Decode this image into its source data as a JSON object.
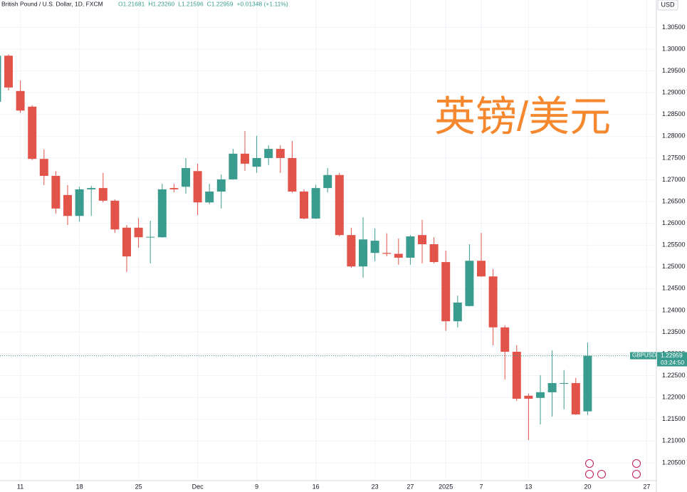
{
  "chart_data": {
    "type": "candlestick",
    "title": "British Pound / U.S. Dollar, 1D, FXCM",
    "ohlc_text": [
      "O1.21681",
      "H1.23260",
      "L1.21596",
      "C1.22959",
      "+0.01348 (+1.11%)"
    ],
    "watermark": "英镑/美元",
    "currency": "USD",
    "symbol": "GBPUSD",
    "countdown": "03:24:50",
    "up_color": "#3a9c8e",
    "down_color": "#e2534a",
    "categories": [
      null,
      null,
      "11",
      null,
      null,
      null,
      null,
      "18",
      null,
      null,
      null,
      null,
      "25",
      null,
      null,
      null,
      null,
      "Dec",
      null,
      null,
      null,
      null,
      "9",
      null,
      null,
      null,
      null,
      "16",
      null,
      null,
      null,
      null,
      "23",
      null,
      null,
      "27",
      null,
      null,
      "2025",
      null,
      null,
      "7",
      null,
      null,
      null,
      "13",
      null,
      null,
      null,
      null,
      "20",
      null,
      null,
      null,
      null,
      "27"
    ],
    "open": [
      1.2879,
      1.2985,
      1.2904,
      1.2868,
      1.2748,
      1.2709,
      1.2665,
      1.2617,
      1.2678,
      1.2681,
      1.2652,
      1.259,
      1.259,
      1.2568,
      1.2568,
      1.2681,
      1.2684,
      1.272,
      1.2648,
      1.2673,
      1.2701,
      1.276,
      1.273,
      1.275,
      1.2771,
      1.275,
      1.2673,
      1.2611,
      1.2681,
      1.2711,
      1.2573,
      1.2501,
      1.2532,
      1.2532,
      1.253,
      1.2521,
      1.2573,
      1.2552,
      1.2511,
      1.2375,
      1.241,
      1.2514,
      1.2478,
      1.2361,
      1.2305,
      1.2204,
      1.2199,
      1.2212,
      1.2232,
      1.2233,
      1.21681,
      null,
      null,
      null,
      null,
      null
    ],
    "high": [
      1.299,
      1.2988,
      1.2928,
      1.2871,
      1.277,
      1.272,
      1.2688,
      1.2684,
      1.2686,
      1.2716,
      1.2655,
      1.2596,
      1.2612,
      1.2606,
      1.2691,
      1.2691,
      1.275,
      1.2737,
      1.2691,
      1.2712,
      1.2771,
      1.2812,
      1.2801,
      1.2779,
      1.2779,
      1.2789,
      1.2678,
      1.2689,
      1.2727,
      1.2716,
      1.259,
      1.2614,
      1.2588,
      1.2577,
      1.2565,
      1.2573,
      1.2608,
      1.2568,
      1.2537,
      1.2434,
      1.2552,
      1.2578,
      1.2495,
      1.2366,
      1.232,
      1.2209,
      1.2251,
      1.2308,
      1.2263,
      1.2245,
      1.2326,
      null,
      null,
      null,
      null,
      null
    ],
    "low": [
      1.287,
      1.2905,
      1.2854,
      1.2745,
      1.2688,
      1.2622,
      1.2596,
      1.2604,
      1.2617,
      1.2648,
      1.2578,
      1.2488,
      1.2544,
      1.2508,
      1.2567,
      1.2671,
      1.2668,
      1.2619,
      1.2644,
      1.2634,
      1.27,
      1.272,
      1.2716,
      1.2734,
      1.2716,
      1.267,
      1.2609,
      1.261,
      1.2671,
      1.257,
      1.2498,
      1.2475,
      1.2513,
      1.2524,
      1.2505,
      1.2505,
      1.2508,
      1.2508,
      1.2353,
      1.2361,
      1.2409,
      1.2477,
      1.232,
      1.2241,
      1.2192,
      1.2102,
      1.2138,
      1.2156,
      1.2173,
      1.216,
      1.21596,
      null,
      null,
      null,
      null,
      null
    ],
    "close": [
      1.2985,
      1.2912,
      1.2859,
      1.2748,
      1.2709,
      1.2634,
      1.2617,
      1.2678,
      1.2681,
      1.2652,
      1.2586,
      1.2524,
      1.2568,
      1.2569,
      1.2678,
      1.2678,
      1.2727,
      1.2648,
      1.2673,
      1.2701,
      1.276,
      1.2737,
      1.275,
      1.2771,
      1.275,
      1.2673,
      1.2611,
      1.2681,
      1.2711,
      1.2573,
      1.2501,
      1.2563,
      1.256,
      1.253,
      1.2521,
      1.257,
      1.2552,
      1.2511,
      1.2375,
      1.2418,
      1.2514,
      1.2478,
      1.2361,
      1.2305,
      1.2197,
      1.2197,
      1.2212,
      1.2233,
      1.2233,
      1.2161,
      1.22959,
      null,
      null,
      null,
      null,
      null
    ],
    "ylim": [
      1.2009,
      1.3113
    ],
    "yticks": [
      {
        "value": 1.205,
        "label": "1.20500"
      },
      {
        "value": 1.21,
        "label": "1.21000"
      },
      {
        "value": 1.215,
        "label": "1.21500"
      },
      {
        "value": 1.22,
        "label": "1.22000"
      },
      {
        "value": 1.225,
        "label": "1.22500"
      },
      {
        "value": 1.23,
        "label": "1.23000"
      },
      {
        "value": 1.235,
        "label": "1.23500"
      },
      {
        "value": 1.24,
        "label": "1.24000"
      },
      {
        "value": 1.245,
        "label": "1.24500"
      },
      {
        "value": 1.25,
        "label": "1.25000"
      },
      {
        "value": 1.255,
        "label": "1.25500"
      },
      {
        "value": 1.26,
        "label": "1.26000"
      },
      {
        "value": 1.265,
        "label": "1.26500"
      },
      {
        "value": 1.27,
        "label": "1.27000"
      },
      {
        "value": 1.275,
        "label": "1.27500"
      },
      {
        "value": 1.28,
        "label": "1.28000"
      },
      {
        "value": 1.285,
        "label": "1.28500"
      },
      {
        "value": 1.29,
        "label": "1.29000"
      },
      {
        "value": 1.295,
        "label": "1.29500"
      },
      {
        "value": 1.3,
        "label": "1.30000"
      },
      {
        "value": 1.305,
        "label": "1.30500"
      }
    ],
    "grid": true
  }
}
